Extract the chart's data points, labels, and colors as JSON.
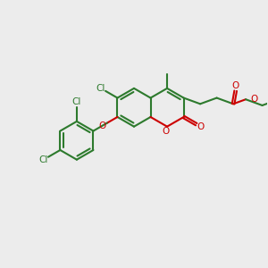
{
  "bg_color": "#ececec",
  "bond_color": "#2d7a2d",
  "heteroatom_color": "#cc0000",
  "lw": 1.5,
  "figsize": [
    3.0,
    3.0
  ],
  "dpi": 100,
  "xlim": [
    0,
    10
  ],
  "ylim": [
    0,
    10
  ]
}
